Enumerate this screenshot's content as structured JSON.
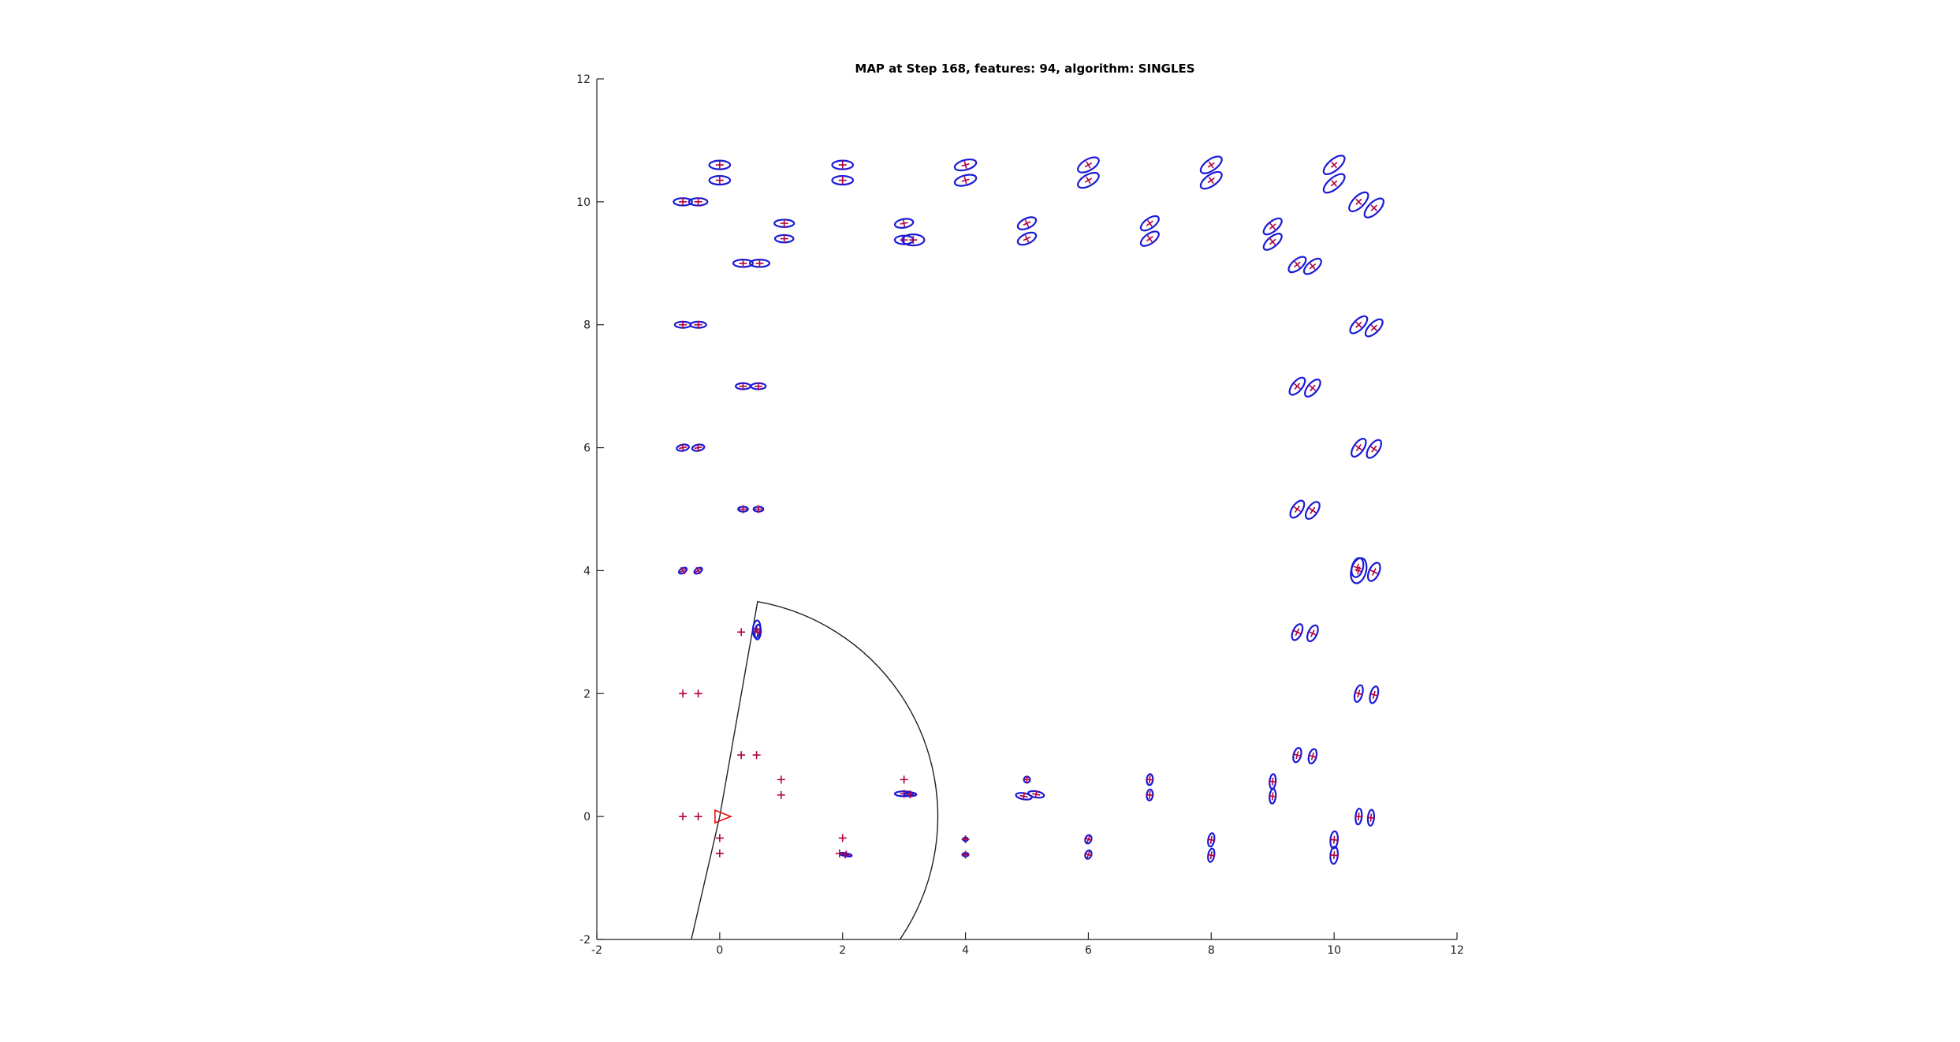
{
  "chart_data": {
    "type": "scatter",
    "title": "MAP at Step 168, features: 94, algorithm: SINGLES",
    "xlabel": "",
    "ylabel": "",
    "xlim": [
      -2,
      12
    ],
    "ylim": [
      -2,
      12
    ],
    "xticks": [
      -2,
      0,
      2,
      4,
      6,
      8,
      10,
      12
    ],
    "yticks": [
      -2,
      0,
      2,
      4,
      6,
      8,
      10,
      12
    ],
    "grid": false,
    "legend": "none",
    "colors": {
      "estimate_ellipse": "#1a1ad6",
      "ground_truth": "#b0003a",
      "robot": "#e01010",
      "sensor_fov": "#222222"
    },
    "series": [
      {
        "kind": "feature-estimates-with-covariance",
        "ellipses": [
          {
            "x": 0.0,
            "y": 10.6,
            "rx": 0.17,
            "ry": 0.07,
            "angle": 0
          },
          {
            "x": 0.0,
            "y": 10.35,
            "rx": 0.17,
            "ry": 0.07,
            "angle": 0
          },
          {
            "x": -0.6,
            "y": 10.0,
            "rx": 0.15,
            "ry": 0.06,
            "angle": 0
          },
          {
            "x": -0.35,
            "y": 10.0,
            "rx": 0.15,
            "ry": 0.06,
            "angle": 0
          },
          {
            "x": 2.0,
            "y": 10.6,
            "rx": 0.17,
            "ry": 0.07,
            "angle": 0
          },
          {
            "x": 2.0,
            "y": 10.35,
            "rx": 0.17,
            "ry": 0.07,
            "angle": 0
          },
          {
            "x": 4.0,
            "y": 10.6,
            "rx": 0.18,
            "ry": 0.08,
            "angle": -15
          },
          {
            "x": 4.0,
            "y": 10.35,
            "rx": 0.18,
            "ry": 0.08,
            "angle": -15
          },
          {
            "x": 6.0,
            "y": 10.6,
            "rx": 0.19,
            "ry": 0.09,
            "angle": -30
          },
          {
            "x": 6.0,
            "y": 10.35,
            "rx": 0.19,
            "ry": 0.09,
            "angle": -30
          },
          {
            "x": 8.0,
            "y": 10.6,
            "rx": 0.2,
            "ry": 0.09,
            "angle": -35
          },
          {
            "x": 8.0,
            "y": 10.35,
            "rx": 0.2,
            "ry": 0.09,
            "angle": -35
          },
          {
            "x": 10.0,
            "y": 10.6,
            "rx": 0.21,
            "ry": 0.09,
            "angle": -40
          },
          {
            "x": 10.0,
            "y": 10.3,
            "rx": 0.21,
            "ry": 0.09,
            "angle": -40
          },
          {
            "x": 10.4,
            "y": 10.0,
            "rx": 0.2,
            "ry": 0.09,
            "angle": -45
          },
          {
            "x": 10.65,
            "y": 9.9,
            "rx": 0.2,
            "ry": 0.09,
            "angle": -45
          },
          {
            "x": 1.05,
            "y": 9.65,
            "rx": 0.16,
            "ry": 0.06,
            "angle": 0
          },
          {
            "x": 1.05,
            "y": 9.4,
            "rx": 0.15,
            "ry": 0.06,
            "angle": 0
          },
          {
            "x": 3.0,
            "y": 9.65,
            "rx": 0.15,
            "ry": 0.07,
            "angle": -10
          },
          {
            "x": 3.0,
            "y": 9.38,
            "rx": 0.15,
            "ry": 0.07,
            "angle": 0
          },
          {
            "x": 3.15,
            "y": 9.38,
            "rx": 0.18,
            "ry": 0.09,
            "angle": 0
          },
          {
            "x": 5.0,
            "y": 9.65,
            "rx": 0.16,
            "ry": 0.08,
            "angle": -25
          },
          {
            "x": 5.0,
            "y": 9.4,
            "rx": 0.16,
            "ry": 0.08,
            "angle": -25
          },
          {
            "x": 7.0,
            "y": 9.65,
            "rx": 0.17,
            "ry": 0.08,
            "angle": -35
          },
          {
            "x": 7.0,
            "y": 9.4,
            "rx": 0.17,
            "ry": 0.08,
            "angle": -35
          },
          {
            "x": 9.0,
            "y": 9.6,
            "rx": 0.18,
            "ry": 0.08,
            "angle": -40
          },
          {
            "x": 9.0,
            "y": 9.35,
            "rx": 0.18,
            "ry": 0.08,
            "angle": -40
          },
          {
            "x": 9.4,
            "y": 8.98,
            "rx": 0.17,
            "ry": 0.08,
            "angle": -40
          },
          {
            "x": 9.65,
            "y": 8.95,
            "rx": 0.17,
            "ry": 0.08,
            "angle": -40
          },
          {
            "x": 0.38,
            "y": 9.0,
            "rx": 0.16,
            "ry": 0.06,
            "angle": 0
          },
          {
            "x": 0.65,
            "y": 9.0,
            "rx": 0.16,
            "ry": 0.06,
            "angle": 0
          },
          {
            "x": -0.6,
            "y": 8.0,
            "rx": 0.13,
            "ry": 0.05,
            "angle": 0
          },
          {
            "x": -0.35,
            "y": 8.0,
            "rx": 0.13,
            "ry": 0.05,
            "angle": 0
          },
          {
            "x": 10.4,
            "y": 8.0,
            "rx": 0.18,
            "ry": 0.08,
            "angle": -45
          },
          {
            "x": 10.65,
            "y": 7.95,
            "rx": 0.18,
            "ry": 0.08,
            "angle": -45
          },
          {
            "x": 0.38,
            "y": 7.0,
            "rx": 0.12,
            "ry": 0.05,
            "angle": 0
          },
          {
            "x": 0.63,
            "y": 7.0,
            "rx": 0.12,
            "ry": 0.05,
            "angle": 0
          },
          {
            "x": 9.4,
            "y": 7.0,
            "rx": 0.17,
            "ry": 0.08,
            "angle": -50
          },
          {
            "x": 9.65,
            "y": 6.97,
            "rx": 0.17,
            "ry": 0.08,
            "angle": -50
          },
          {
            "x": -0.6,
            "y": 6.0,
            "rx": 0.1,
            "ry": 0.05,
            "angle": -10
          },
          {
            "x": -0.35,
            "y": 6.0,
            "rx": 0.1,
            "ry": 0.05,
            "angle": -10
          },
          {
            "x": 10.4,
            "y": 6.0,
            "rx": 0.17,
            "ry": 0.08,
            "angle": -55
          },
          {
            "x": 10.65,
            "y": 5.98,
            "rx": 0.17,
            "ry": 0.08,
            "angle": -55
          },
          {
            "x": 0.38,
            "y": 5.0,
            "rx": 0.08,
            "ry": 0.04,
            "angle": 0
          },
          {
            "x": 0.63,
            "y": 5.0,
            "rx": 0.08,
            "ry": 0.04,
            "angle": 0
          },
          {
            "x": 9.4,
            "y": 5.0,
            "rx": 0.16,
            "ry": 0.08,
            "angle": -55
          },
          {
            "x": 9.65,
            "y": 4.98,
            "rx": 0.16,
            "ry": 0.08,
            "angle": -55
          },
          {
            "x": -0.6,
            "y": 4.0,
            "rx": 0.07,
            "ry": 0.04,
            "angle": -30
          },
          {
            "x": -0.35,
            "y": 4.0,
            "rx": 0.07,
            "ry": 0.04,
            "angle": -30
          },
          {
            "x": 10.4,
            "y": 4.0,
            "rx": 0.21,
            "ry": 0.12,
            "angle": -75
          },
          {
            "x": 10.38,
            "y": 4.05,
            "rx": 0.16,
            "ry": 0.09,
            "angle": -75
          },
          {
            "x": 10.65,
            "y": 3.98,
            "rx": 0.16,
            "ry": 0.08,
            "angle": -65
          },
          {
            "x": 0.6,
            "y": 3.05,
            "rx": 0.14,
            "ry": 0.06,
            "angle": -85
          },
          {
            "x": 0.62,
            "y": 3.0,
            "rx": 0.12,
            "ry": 0.05,
            "angle": -85
          },
          {
            "x": 9.4,
            "y": 3.0,
            "rx": 0.14,
            "ry": 0.07,
            "angle": -65
          },
          {
            "x": 9.65,
            "y": 2.98,
            "rx": 0.14,
            "ry": 0.07,
            "angle": -65
          },
          {
            "x": 10.4,
            "y": 2.0,
            "rx": 0.14,
            "ry": 0.06,
            "angle": -75
          },
          {
            "x": 10.65,
            "y": 1.98,
            "rx": 0.14,
            "ry": 0.06,
            "angle": -75
          },
          {
            "x": 9.4,
            "y": 1.0,
            "rx": 0.12,
            "ry": 0.06,
            "angle": -75
          },
          {
            "x": 9.65,
            "y": 0.98,
            "rx": 0.12,
            "ry": 0.06,
            "angle": -75
          },
          {
            "x": 3.0,
            "y": 0.37,
            "rx": 0.15,
            "ry": 0.04,
            "angle": 0
          },
          {
            "x": 3.1,
            "y": 0.36,
            "rx": 0.1,
            "ry": 0.03,
            "angle": 0
          },
          {
            "x": 5.0,
            "y": 0.6,
            "rx": 0.05,
            "ry": 0.05,
            "angle": 0
          },
          {
            "x": 4.95,
            "y": 0.33,
            "rx": 0.13,
            "ry": 0.05,
            "angle": 10
          },
          {
            "x": 5.15,
            "y": 0.36,
            "rx": 0.13,
            "ry": 0.05,
            "angle": 10
          },
          {
            "x": 7.0,
            "y": 0.6,
            "rx": 0.09,
            "ry": 0.05,
            "angle": -85
          },
          {
            "x": 7.0,
            "y": 0.35,
            "rx": 0.09,
            "ry": 0.05,
            "angle": -85
          },
          {
            "x": 9.0,
            "y": 0.57,
            "rx": 0.12,
            "ry": 0.05,
            "angle": -85
          },
          {
            "x": 9.0,
            "y": 0.33,
            "rx": 0.12,
            "ry": 0.05,
            "angle": -85
          },
          {
            "x": 10.4,
            "y": 0.0,
            "rx": 0.13,
            "ry": 0.05,
            "angle": -85
          },
          {
            "x": 10.6,
            "y": -0.02,
            "rx": 0.13,
            "ry": 0.05,
            "angle": -85
          },
          {
            "x": 10.0,
            "y": -0.38,
            "rx": 0.14,
            "ry": 0.06,
            "angle": -85
          },
          {
            "x": 10.0,
            "y": -0.63,
            "rx": 0.14,
            "ry": 0.06,
            "angle": -85
          },
          {
            "x": 6.0,
            "y": -0.37,
            "rx": 0.07,
            "ry": 0.05,
            "angle": -70
          },
          {
            "x": 6.0,
            "y": -0.62,
            "rx": 0.07,
            "ry": 0.05,
            "angle": -70
          },
          {
            "x": 8.0,
            "y": -0.38,
            "rx": 0.11,
            "ry": 0.05,
            "angle": -80
          },
          {
            "x": 8.0,
            "y": -0.63,
            "rx": 0.11,
            "ry": 0.05,
            "angle": -80
          },
          {
            "x": 4.0,
            "y": -0.37,
            "rx": 0.04,
            "ry": 0.03,
            "angle": 0
          },
          {
            "x": 4.0,
            "y": -0.62,
            "rx": 0.05,
            "ry": 0.03,
            "angle": 0
          },
          {
            "x": 2.05,
            "y": -0.62,
            "rx": 0.1,
            "ry": 0.025,
            "angle": 10
          }
        ]
      },
      {
        "kind": "ground-truth-without-estimate",
        "points": [
          {
            "x": 0.35,
            "y": 3.0
          },
          {
            "x": -0.6,
            "y": 2.0
          },
          {
            "x": -0.35,
            "y": 2.0
          },
          {
            "x": 0.35,
            "y": 1.0
          },
          {
            "x": 0.6,
            "y": 1.0
          },
          {
            "x": 1.0,
            "y": 0.6
          },
          {
            "x": 1.0,
            "y": 0.35
          },
          {
            "x": 3.0,
            "y": 0.6
          },
          {
            "x": -0.6,
            "y": 0.0
          },
          {
            "x": -0.35,
            "y": 0.0
          },
          {
            "x": 0.0,
            "y": -0.35
          },
          {
            "x": 0.0,
            "y": -0.6
          },
          {
            "x": 2.0,
            "y": -0.35
          },
          {
            "x": 1.95,
            "y": -0.6
          }
        ]
      }
    ],
    "robot": {
      "x": 0.0,
      "y": 0.0,
      "heading_deg": 0
    },
    "sensor_fov": {
      "apex": {
        "x": 0.0,
        "y": 0.0
      },
      "range": 3.55,
      "start_deg": -103,
      "end_deg": 80
    }
  }
}
